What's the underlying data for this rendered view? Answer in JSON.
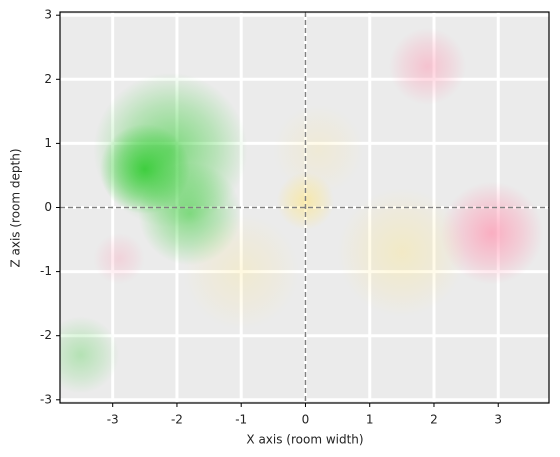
{
  "chart_data": {
    "type": "density",
    "xlabel": "X axis (room width)",
    "ylabel": "Z axis (room depth)",
    "xlim": [
      -3.82,
      3.79
    ],
    "ylim": [
      -3.05,
      3.05
    ],
    "xticks": [
      -3,
      -2,
      -1,
      0,
      1,
      2,
      3
    ],
    "yticks": [
      -3,
      -2,
      -1,
      0,
      1,
      2,
      3
    ],
    "grid": true,
    "background": "#ebebeb",
    "grid_color": "#ffffff",
    "hline": 0,
    "vline": 0,
    "ref_line_color": "#808080",
    "series": [
      {
        "color": "#33cc33",
        "x": [
          -2.5,
          -2.1,
          -1.8,
          -3.5
        ],
        "values": [
          0.6,
          0.9,
          -0.1,
          -2.3
        ],
        "sizes": [
          0.7,
          1.2,
          0.8,
          0.6
        ],
        "opacity": [
          0.9,
          0.6,
          0.55,
          0.3
        ]
      },
      {
        "color": "#ff99b3",
        "x": [
          1.9,
          2.9,
          -2.9
        ],
        "values": [
          2.2,
          -0.4,
          -0.8
        ],
        "sizes": [
          0.6,
          0.8,
          0.4
        ],
        "opacity": [
          0.5,
          0.75,
          0.3
        ]
      },
      {
        "color": "#ffe680",
        "x": [
          0.0,
          1.5,
          -1.0,
          0.2
        ],
        "values": [
          0.1,
          -0.7,
          -1.0,
          0.9
        ],
        "sizes": [
          0.45,
          1.0,
          0.9,
          0.7
        ],
        "opacity": [
          0.6,
          0.35,
          0.25,
          0.2
        ]
      }
    ]
  }
}
